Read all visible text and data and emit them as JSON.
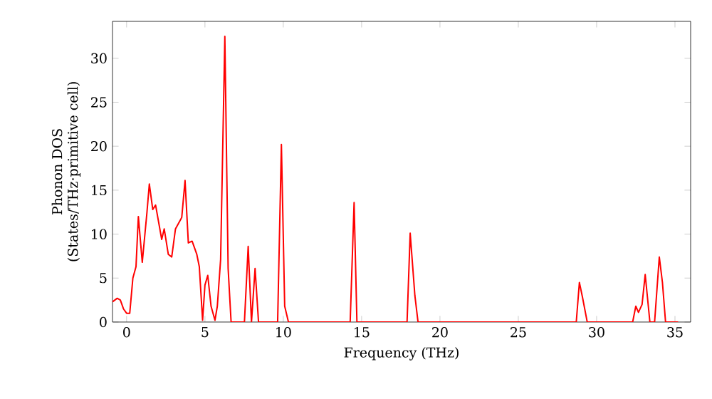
{
  "chart_data": {
    "type": "line",
    "xlabel": "Frequency (THz)",
    "ylabel": "Phonon DOS\n(States/THz·primitive cell)",
    "x": [
      -0.9,
      -0.6,
      -0.4,
      -0.2,
      0,
      0.2,
      0.4,
      0.6,
      0.75,
      1.0,
      1.3,
      1.45,
      1.67,
      1.85,
      2.24,
      2.4,
      2.66,
      2.88,
      3.12,
      3.52,
      3.73,
      3.94,
      4.18,
      4.48,
      4.64,
      4.85,
      5.0,
      5.18,
      5.39,
      5.64,
      5.79,
      6.0,
      6.27,
      6.48,
      6.67,
      7.52,
      7.76,
      7.97,
      8.2,
      8.42,
      9.64,
      9.88,
      10.09,
      10.33,
      14.27,
      14.52,
      14.7,
      17.9,
      18.1,
      18.4,
      18.6,
      28.7,
      28.9,
      29.1,
      29.4,
      32.3,
      32.5,
      32.67,
      32.9,
      33.1,
      33.4,
      33.7,
      34.0,
      34.2,
      34.4,
      35.2
    ],
    "series": [
      {
        "color": "#ff0000",
        "values": [
          2.3,
          2.7,
          2.5,
          1.5,
          1.0,
          1.0,
          5.0,
          6.3,
          12,
          6.8,
          12.5,
          15.7,
          12.8,
          13.3,
          9.4,
          10.6,
          7.7,
          7.4,
          10.6,
          11.9,
          16.1,
          9,
          9.2,
          7.7,
          6.3,
          0.2,
          4.2,
          5.3,
          1.8,
          0.2,
          1.8,
          7.1,
          32.5,
          6.1,
          0,
          0,
          8.6,
          0,
          6.1,
          0,
          0,
          20.2,
          1.8,
          0,
          0,
          13.6,
          0,
          0,
          10.1,
          3,
          0,
          0,
          4.5,
          2.8,
          0,
          0,
          1.8,
          1.1,
          2,
          5.4,
          0,
          0,
          7.4,
          4.5,
          0,
          0
        ]
      }
    ],
    "xlim": [
      -0.9,
      36
    ],
    "ylim": [
      0,
      34.2
    ],
    "xticks": [
      0,
      5,
      10,
      15,
      20,
      25,
      30,
      35
    ],
    "yticks": [
      0,
      5,
      10,
      15,
      20,
      25,
      30
    ],
    "marker": "none",
    "line_style": "solid"
  }
}
